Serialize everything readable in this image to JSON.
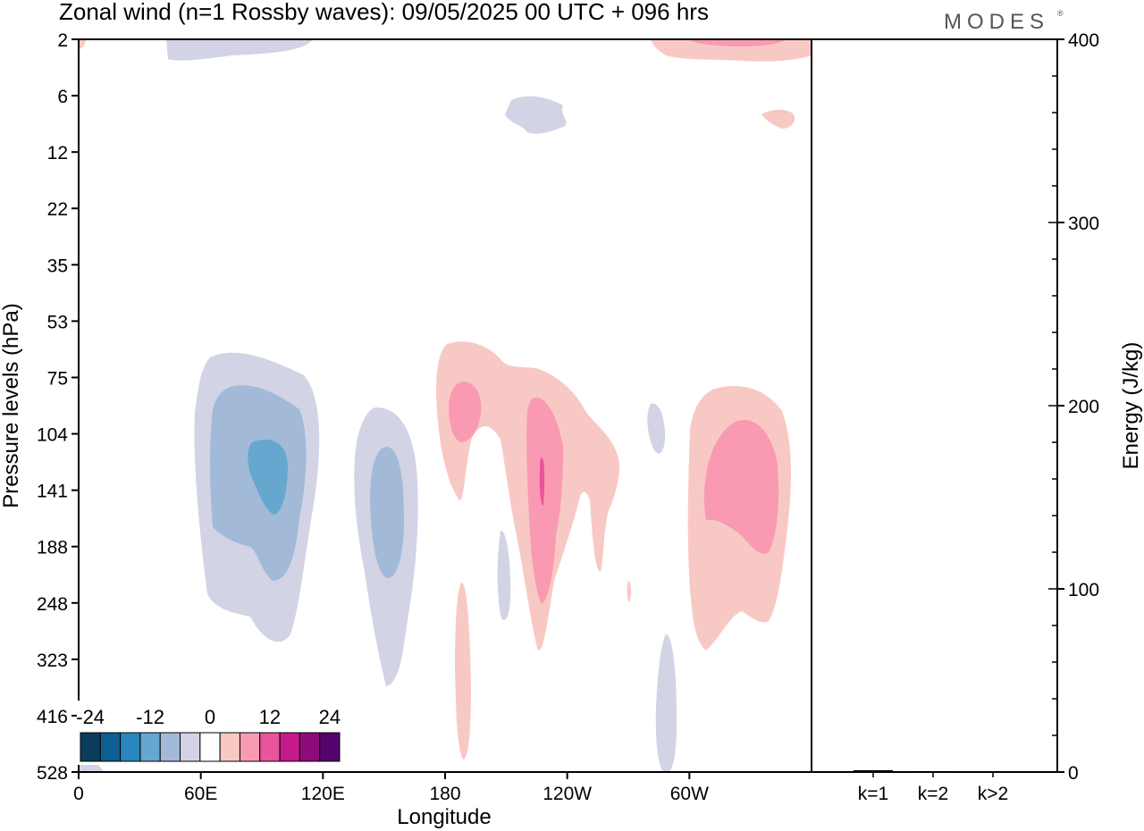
{
  "title": "Zonal wind (n=1 Rossby waves):  09/05/2025  00 UTC  + 096 hrs",
  "brand": "MODES",
  "brand_mark": "®",
  "chart_data": [
    {
      "type": "heatmap",
      "xlabel": "Longitude",
      "ylabel": "Pressure levels (hPa)",
      "x_ticks": [
        "0",
        "60E",
        "120E",
        "180",
        "120W",
        "60W"
      ],
      "x_tick_values": [
        0,
        60,
        120,
        180,
        240,
        300
      ],
      "xlim": [
        0,
        360
      ],
      "y_ticks": [
        2,
        6,
        12,
        22,
        35,
        53,
        75,
        104,
        141,
        188,
        248,
        323,
        416,
        528
      ],
      "colorbar": {
        "labels": [
          "-24",
          "-12",
          "0",
          "12",
          "24"
        ],
        "levels": [
          -24,
          -20,
          -16,
          -12,
          -8,
          -4,
          4,
          8,
          12,
          16,
          20,
          24
        ],
        "colors": [
          "#0a3d5c",
          "#0d5f92",
          "#2a86bf",
          "#66a7d0",
          "#a2bad8",
          "#d2d3e5",
          "#ffffff",
          "#f8c9c4",
          "#f99ab2",
          "#e8559a",
          "#c41a8a",
          "#8e0b7a",
          "#54036c"
        ]
      },
      "regions": [
        {
          "sign": "negative",
          "lon": 55,
          "pressure": 188,
          "level": -4
        },
        {
          "sign": "negative",
          "lon": 70,
          "pressure": 141,
          "level": -8
        },
        {
          "sign": "negative",
          "lon": 95,
          "pressure": 130,
          "level": -12
        },
        {
          "sign": "negative",
          "lon": 150,
          "pressure": 188,
          "level": -4
        },
        {
          "sign": "negative",
          "lon": 150,
          "pressure": 141,
          "level": -8
        },
        {
          "sign": "negative",
          "lon": 200,
          "pressure": 8,
          "level": -4
        },
        {
          "sign": "negative",
          "lon": 45,
          "pressure": 3,
          "level": -4
        },
        {
          "sign": "negative",
          "lon": 285,
          "pressure": 110,
          "level": -4
        },
        {
          "sign": "negative",
          "lon": 290,
          "pressure": 400,
          "level": -4
        },
        {
          "sign": "positive",
          "lon": 190,
          "pressure": 104,
          "level": 4
        },
        {
          "sign": "positive",
          "lon": 215,
          "pressure": 150,
          "level": 4
        },
        {
          "sign": "positive",
          "lon": 215,
          "pressure": 150,
          "level": 8
        },
        {
          "sign": "positive",
          "lon": 315,
          "pressure": 150,
          "level": 4
        },
        {
          "sign": "positive",
          "lon": 315,
          "pressure": 130,
          "level": 8
        },
        {
          "sign": "positive",
          "lon": 330,
          "pressure": 3,
          "level": 4
        },
        {
          "sign": "positive",
          "lon": 345,
          "pressure": 8,
          "level": 4
        },
        {
          "sign": "positive",
          "lon": 190,
          "pressure": 380,
          "level": 4
        }
      ]
    },
    {
      "type": "bar",
      "categories": [
        "k=1",
        "k=2",
        "k>2"
      ],
      "values": [
        1,
        0.5,
        0.3
      ],
      "ylabel": "Energy (J/kg)",
      "ylim": [
        0,
        400
      ],
      "y_ticks": [
        0,
        100,
        200,
        300,
        400
      ]
    }
  ]
}
